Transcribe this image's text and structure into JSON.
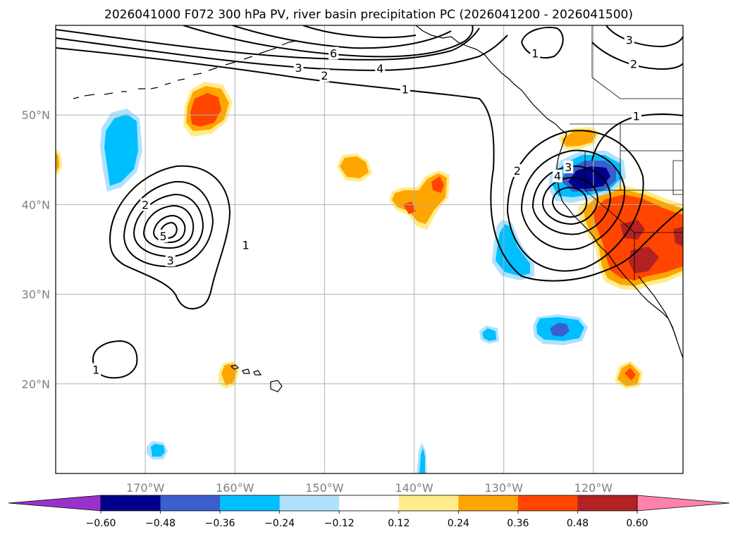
{
  "chart_data": {
    "type": "map",
    "title": "2026041000 F072 300 hPa PV, river basin precipitation PC (2026041200 - 2026041500)",
    "lon_range": [
      -180,
      -110
    ],
    "lat_range": [
      10,
      60
    ],
    "x_ticks": [
      {
        "lon": -170,
        "label": "170°W"
      },
      {
        "lon": -160,
        "label": "160°W"
      },
      {
        "lon": -150,
        "label": "150°W"
      },
      {
        "lon": -140,
        "label": "140°W"
      },
      {
        "lon": -130,
        "label": "130°W"
      },
      {
        "lon": -120,
        "label": "120°W"
      }
    ],
    "y_ticks": [
      {
        "lat": 50,
        "label": "50°N"
      },
      {
        "lat": 40,
        "label": "40°N"
      },
      {
        "lat": 30,
        "label": "30°N"
      },
      {
        "lat": 20,
        "label": "20°N"
      }
    ],
    "colorbar": {
      "levels": [
        "−0.60",
        "−0.48",
        "−0.36",
        "−0.24",
        "−0.12",
        "0.12",
        "0.24",
        "0.36",
        "0.48",
        "0.60"
      ],
      "level_values": [
        -0.6,
        -0.48,
        -0.36,
        -0.24,
        -0.12,
        0.12,
        0.24,
        0.36,
        0.48,
        0.6
      ],
      "colors": [
        "#9932cc",
        "#00008b",
        "#3a5fcd",
        "#00bfff",
        "#b0e2ff",
        "#ffffff",
        "#ffec8b",
        "#ffa500",
        "#ff4500",
        "#b22222",
        "#ff82ab"
      ],
      "extend": "both"
    },
    "pv_contour_labels": [
      {
        "text": "6",
        "lon": -149,
        "lat": 56.9
      },
      {
        "text": "4",
        "lon": -143.8,
        "lat": 55.2
      },
      {
        "text": "3",
        "lon": -152.9,
        "lat": 55.3
      },
      {
        "text": "2",
        "lon": -150,
        "lat": 54.4
      },
      {
        "text": "1",
        "lon": -141,
        "lat": 52.9
      },
      {
        "text": "1",
        "lon": -126.5,
        "lat": 56.9
      },
      {
        "text": "3",
        "lon": -116,
        "lat": 58.4
      },
      {
        "text": "2",
        "lon": -115.5,
        "lat": 55.7
      },
      {
        "text": "1",
        "lon": -115.2,
        "lat": 49.9
      },
      {
        "text": "2",
        "lon": -128.5,
        "lat": 43.8
      },
      {
        "text": "3",
        "lon": -122.8,
        "lat": 44.2
      },
      {
        "text": "4",
        "lon": -124,
        "lat": 43.2
      },
      {
        "text": "2",
        "lon": -170,
        "lat": 40
      },
      {
        "text": "5",
        "lon": -168,
        "lat": 36.5
      },
      {
        "text": "3",
        "lon": -167.2,
        "lat": 33.8
      },
      {
        "text": "1",
        "lon": -158.8,
        "lat": 35.5
      },
      {
        "text": "1",
        "lon": -175.5,
        "lat": 21.6
      }
    ],
    "precip_pc_regions": [
      {
        "category": "0.48 to 0.60",
        "lon": -113,
        "lat": 36
      },
      {
        "category": "0.36 to 0.48",
        "lon": -116,
        "lat": 36
      },
      {
        "category": "0.24 to 0.36",
        "lon": -164,
        "lat": 50
      },
      {
        "category": "0.24 to 0.36",
        "lon": -140,
        "lat": 41
      },
      {
        "category": "−0.60 to −0.48",
        "lon": -122,
        "lat": 42.5
      },
      {
        "category": "−0.36 to −0.24",
        "lon": -173,
        "lat": 46
      },
      {
        "category": "−0.36 to −0.24",
        "lon": -129,
        "lat": 34
      },
      {
        "category": "−0.48 to −0.36",
        "lon": -125,
        "lat": 25.8
      },
      {
        "category": "−0.36 to −0.24",
        "lon": -169,
        "lat": 12.5
      }
    ]
  }
}
